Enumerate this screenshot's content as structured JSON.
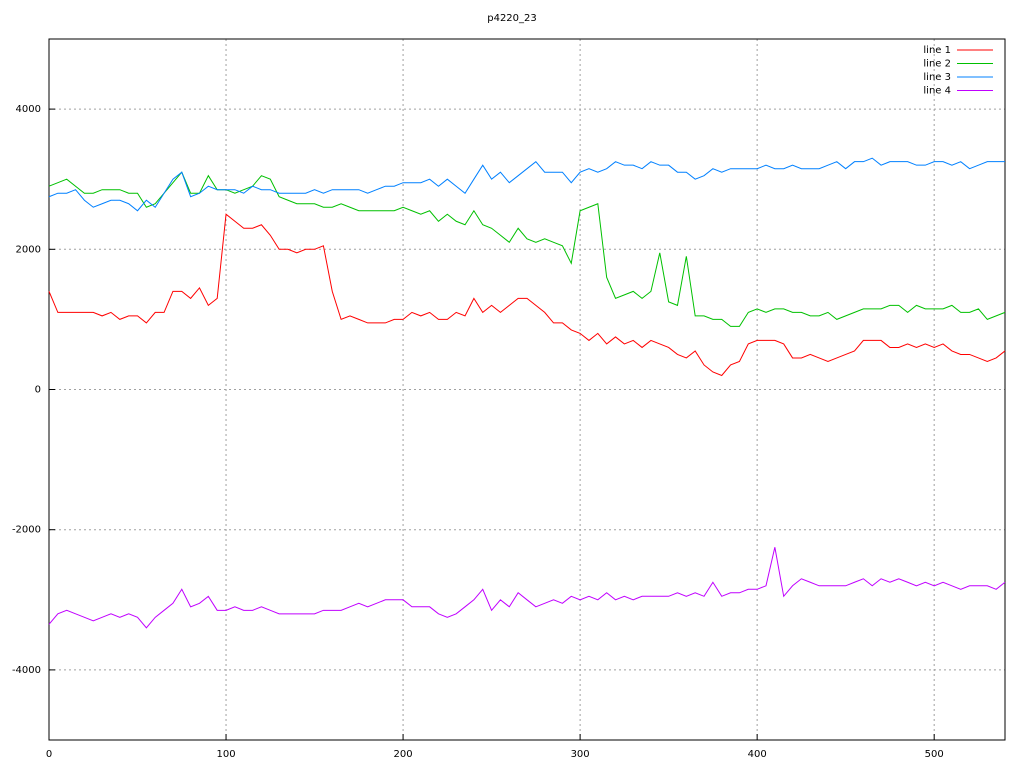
{
  "chart_data": {
    "type": "line",
    "title": "p4220_23",
    "x": [
      0,
      5,
      10,
      15,
      20,
      25,
      30,
      35,
      40,
      45,
      50,
      55,
      60,
      65,
      70,
      75,
      80,
      85,
      90,
      95,
      100,
      105,
      110,
      115,
      120,
      125,
      130,
      135,
      140,
      145,
      150,
      155,
      160,
      165,
      170,
      175,
      180,
      185,
      190,
      195,
      200,
      205,
      210,
      215,
      220,
      225,
      230,
      235,
      240,
      245,
      250,
      255,
      260,
      265,
      270,
      275,
      280,
      285,
      290,
      295,
      300,
      305,
      310,
      315,
      320,
      325,
      330,
      335,
      340,
      345,
      350,
      355,
      360,
      365,
      370,
      375,
      380,
      385,
      390,
      395,
      400,
      405,
      410,
      415,
      420,
      425,
      430,
      435,
      440,
      445,
      450,
      455,
      460,
      465,
      470,
      475,
      480,
      485,
      490,
      495,
      500,
      505,
      510,
      515,
      520,
      525,
      530,
      535,
      540
    ],
    "series": [
      {
        "name": "line 1",
        "color": "#ff0000",
        "values": [
          1400,
          1100,
          1100,
          1100,
          1100,
          1100,
          1050,
          1100,
          1000,
          1050,
          1050,
          950,
          1100,
          1100,
          1400,
          1400,
          1300,
          1450,
          1200,
          1300,
          2500,
          2400,
          2300,
          2300,
          2350,
          2200,
          2000,
          2000,
          1950,
          2000,
          2000,
          2050,
          1400,
          1000,
          1050,
          1000,
          950,
          950,
          950,
          1000,
          1000,
          1100,
          1050,
          1100,
          1000,
          1000,
          1100,
          1050,
          1300,
          1100,
          1200,
          1100,
          1200,
          1300,
          1300,
          1200,
          1100,
          950,
          950,
          850,
          800,
          700,
          800,
          650,
          750,
          650,
          700,
          600,
          700,
          650,
          600,
          500,
          450,
          550,
          350,
          250,
          200,
          350,
          400,
          650,
          700,
          700,
          700,
          650,
          450,
          450,
          500,
          450,
          400,
          450,
          500,
          550,
          700,
          700,
          700,
          600,
          600,
          650,
          600,
          650,
          600,
          650,
          550,
          500,
          500,
          450,
          400,
          450,
          550
        ]
      },
      {
        "name": "line 2",
        "color": "#00c000",
        "values": [
          2900,
          2950,
          3000,
          2900,
          2800,
          2800,
          2850,
          2850,
          2850,
          2800,
          2800,
          2600,
          2650,
          2800,
          2950,
          3100,
          2800,
          2800,
          3050,
          2850,
          2850,
          2800,
          2850,
          2900,
          3050,
          3000,
          2750,
          2700,
          2650,
          2650,
          2650,
          2600,
          2600,
          2650,
          2600,
          2550,
          2550,
          2550,
          2550,
          2550,
          2600,
          2550,
          2500,
          2550,
          2400,
          2500,
          2400,
          2350,
          2550,
          2350,
          2300,
          2200,
          2100,
          2300,
          2150,
          2100,
          2150,
          2100,
          2050,
          1800,
          2550,
          2600,
          2650,
          1600,
          1300,
          1350,
          1400,
          1300,
          1400,
          1950,
          1250,
          1200,
          1900,
          1050,
          1050,
          1000,
          1000,
          900,
          900,
          1100,
          1150,
          1100,
          1150,
          1150,
          1100,
          1100,
          1050,
          1050,
          1100,
          1000,
          1050,
          1100,
          1150,
          1150,
          1150,
          1200,
          1200,
          1100,
          1200,
          1150,
          1150,
          1150,
          1200,
          1100,
          1100,
          1150,
          1000,
          1050,
          1100
        ]
      },
      {
        "name": "line 3",
        "color": "#0080ff",
        "values": [
          2750,
          2800,
          2800,
          2850,
          2700,
          2600,
          2650,
          2700,
          2700,
          2650,
          2550,
          2700,
          2600,
          2800,
          3000,
          3100,
          2750,
          2800,
          2900,
          2850,
          2850,
          2850,
          2800,
          2900,
          2850,
          2850,
          2800,
          2800,
          2800,
          2800,
          2850,
          2800,
          2850,
          2850,
          2850,
          2850,
          2800,
          2850,
          2900,
          2900,
          2950,
          2950,
          2950,
          3000,
          2900,
          3000,
          2900,
          2800,
          3000,
          3200,
          3000,
          3100,
          2950,
          3050,
          3150,
          3250,
          3100,
          3100,
          3100,
          2950,
          3100,
          3150,
          3100,
          3150,
          3250,
          3200,
          3200,
          3150,
          3250,
          3200,
          3200,
          3100,
          3100,
          3000,
          3050,
          3150,
          3100,
          3150,
          3150,
          3150,
          3150,
          3200,
          3150,
          3150,
          3200,
          3150,
          3150,
          3150,
          3200,
          3250,
          3150,
          3250,
          3250,
          3300,
          3200,
          3250,
          3250,
          3250,
          3200,
          3200,
          3250,
          3250,
          3200,
          3250,
          3150,
          3200,
          3250,
          3250,
          3250
        ]
      },
      {
        "name": "line 4",
        "color": "#c000ff",
        "values": [
          -3350,
          -3200,
          -3150,
          -3200,
          -3250,
          -3300,
          -3250,
          -3200,
          -3250,
          -3200,
          -3250,
          -3400,
          -3250,
          -3150,
          -3050,
          -2850,
          -3100,
          -3050,
          -2950,
          -3150,
          -3150,
          -3100,
          -3150,
          -3150,
          -3100,
          -3150,
          -3200,
          -3200,
          -3200,
          -3200,
          -3200,
          -3150,
          -3150,
          -3150,
          -3100,
          -3050,
          -3100,
          -3050,
          -3000,
          -3000,
          -3000,
          -3100,
          -3100,
          -3100,
          -3200,
          -3250,
          -3200,
          -3100,
          -3000,
          -2850,
          -3150,
          -3000,
          -3100,
          -2900,
          -3000,
          -3100,
          -3050,
          -3000,
          -3050,
          -2950,
          -3000,
          -2950,
          -3000,
          -2900,
          -3000,
          -2950,
          -3000,
          -2950,
          -2950,
          -2950,
          -2950,
          -2900,
          -2950,
          -2900,
          -2950,
          -2750,
          -2950,
          -2900,
          -2900,
          -2850,
          -2850,
          -2800,
          -2250,
          -2950,
          -2800,
          -2700,
          -2750,
          -2800,
          -2800,
          -2800,
          -2800,
          -2750,
          -2700,
          -2800,
          -2700,
          -2750,
          -2700,
          -2750,
          -2800,
          -2750,
          -2800,
          -2750,
          -2800,
          -2850,
          -2800,
          -2800,
          -2800,
          -2850,
          -2750
        ]
      }
    ],
    "xlim": [
      0,
      540
    ],
    "ylim": [
      -5000,
      5000
    ],
    "xticks": [
      0,
      100,
      200,
      300,
      400,
      500
    ],
    "yticks": [
      -4000,
      -2000,
      0,
      2000,
      4000
    ],
    "grid": true,
    "legend": "top-right"
  }
}
